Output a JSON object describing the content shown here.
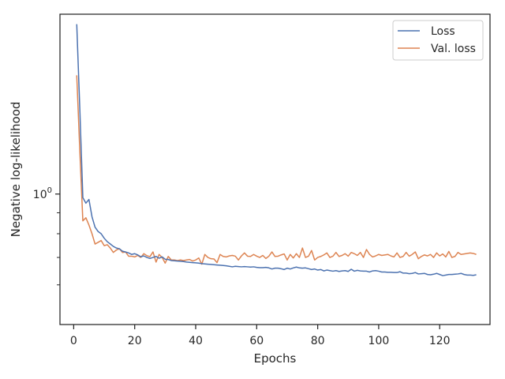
{
  "chart_data": {
    "type": "line",
    "xlabel": "Epochs",
    "ylabel": "Negative log-likelihood",
    "yscale": "log",
    "xlim": [
      -4.5,
      136.5
    ],
    "ylim": [
      0.48,
      2.75
    ],
    "x_ticks": [
      0,
      20,
      40,
      60,
      80,
      100,
      120
    ],
    "y_major_ticks": [
      {
        "value": 1.0,
        "label": "10^0"
      }
    ],
    "y_minor_ticks": [
      0.6,
      0.7,
      0.8,
      0.9
    ],
    "grid": false,
    "legend_position": "top-right",
    "x": [
      1,
      2,
      3,
      4,
      5,
      6,
      7,
      8,
      9,
      10,
      11,
      12,
      13,
      14,
      15,
      16,
      17,
      18,
      19,
      20,
      21,
      22,
      23,
      24,
      25,
      26,
      27,
      28,
      29,
      30,
      31,
      32,
      33,
      34,
      35,
      36,
      37,
      38,
      39,
      40,
      41,
      42,
      43,
      44,
      45,
      46,
      47,
      48,
      49,
      50,
      51,
      52,
      53,
      54,
      55,
      56,
      57,
      58,
      59,
      60,
      61,
      62,
      63,
      64,
      65,
      66,
      67,
      68,
      69,
      70,
      71,
      72,
      73,
      74,
      75,
      76,
      77,
      78,
      79,
      80,
      81,
      82,
      83,
      84,
      85,
      86,
      87,
      88,
      89,
      90,
      91,
      92,
      93,
      94,
      95,
      96,
      97,
      98,
      99,
      100,
      101,
      102,
      103,
      104,
      105,
      106,
      107,
      108,
      109,
      110,
      111,
      112,
      113,
      114,
      115,
      116,
      117,
      118,
      119,
      120,
      121,
      122,
      123,
      124,
      125,
      126,
      127,
      128,
      129,
      130,
      131,
      132
    ],
    "series": [
      {
        "name": "Loss",
        "color": "#4c72b0",
        "values": [
          2.6,
          1.62,
          0.98,
          0.95,
          0.97,
          0.88,
          0.83,
          0.81,
          0.8,
          0.78,
          0.765,
          0.755,
          0.745,
          0.738,
          0.735,
          0.725,
          0.722,
          0.718,
          0.712,
          0.715,
          0.71,
          0.703,
          0.706,
          0.7,
          0.696,
          0.7,
          0.704,
          0.697,
          0.702,
          0.693,
          0.692,
          0.688,
          0.687,
          0.686,
          0.685,
          0.684,
          0.682,
          0.681,
          0.68,
          0.679,
          0.678,
          0.676,
          0.675,
          0.674,
          0.673,
          0.672,
          0.671,
          0.67,
          0.669,
          0.668,
          0.666,
          0.664,
          0.666,
          0.665,
          0.664,
          0.665,
          0.664,
          0.663,
          0.664,
          0.662,
          0.661,
          0.661,
          0.662,
          0.66,
          0.656,
          0.659,
          0.659,
          0.657,
          0.654,
          0.659,
          0.656,
          0.66,
          0.663,
          0.66,
          0.659,
          0.66,
          0.657,
          0.654,
          0.656,
          0.652,
          0.654,
          0.649,
          0.652,
          0.65,
          0.648,
          0.65,
          0.647,
          0.649,
          0.65,
          0.647,
          0.655,
          0.648,
          0.651,
          0.649,
          0.648,
          0.648,
          0.645,
          0.649,
          0.65,
          0.648,
          0.645,
          0.645,
          0.644,
          0.644,
          0.643,
          0.643,
          0.646,
          0.641,
          0.641,
          0.639,
          0.64,
          0.643,
          0.638,
          0.639,
          0.64,
          0.636,
          0.635,
          0.637,
          0.64,
          0.636,
          0.632,
          0.634,
          0.636,
          0.636,
          0.637,
          0.638,
          0.64,
          0.636,
          0.634,
          0.634,
          0.633,
          0.635
        ]
      },
      {
        "name": "Val. loss",
        "color": "#dd8452",
        "values": [
          1.95,
          1.28,
          0.86,
          0.875,
          0.84,
          0.8,
          0.755,
          0.762,
          0.77,
          0.748,
          0.752,
          0.738,
          0.72,
          0.73,
          0.735,
          0.72,
          0.722,
          0.705,
          0.705,
          0.702,
          0.708,
          0.7,
          0.715,
          0.707,
          0.703,
          0.722,
          0.682,
          0.712,
          0.7,
          0.678,
          0.704,
          0.69,
          0.69,
          0.688,
          0.69,
          0.688,
          0.69,
          0.692,
          0.686,
          0.69,
          0.698,
          0.674,
          0.712,
          0.7,
          0.695,
          0.694,
          0.68,
          0.712,
          0.704,
          0.702,
          0.706,
          0.708,
          0.705,
          0.69,
          0.706,
          0.718,
          0.705,
          0.704,
          0.712,
          0.705,
          0.7,
          0.708,
          0.696,
          0.705,
          0.722,
          0.704,
          0.705,
          0.71,
          0.714,
          0.69,
          0.712,
          0.698,
          0.715,
          0.7,
          0.738,
          0.7,
          0.705,
          0.728,
          0.69,
          0.7,
          0.704,
          0.71,
          0.718,
          0.7,
          0.705,
          0.72,
          0.704,
          0.708,
          0.715,
          0.705,
          0.72,
          0.715,
          0.708,
          0.72,
          0.7,
          0.732,
          0.712,
          0.702,
          0.706,
          0.712,
          0.708,
          0.71,
          0.712,
          0.706,
          0.702,
          0.718,
          0.7,
          0.704,
          0.72,
          0.705,
          0.712,
          0.722,
          0.695,
          0.704,
          0.71,
          0.706,
          0.712,
          0.7,
          0.718,
          0.706,
          0.714,
          0.702,
          0.724,
          0.7,
          0.704,
          0.72,
          0.712,
          0.714,
          0.716,
          0.718,
          0.716,
          0.712
        ]
      }
    ]
  }
}
